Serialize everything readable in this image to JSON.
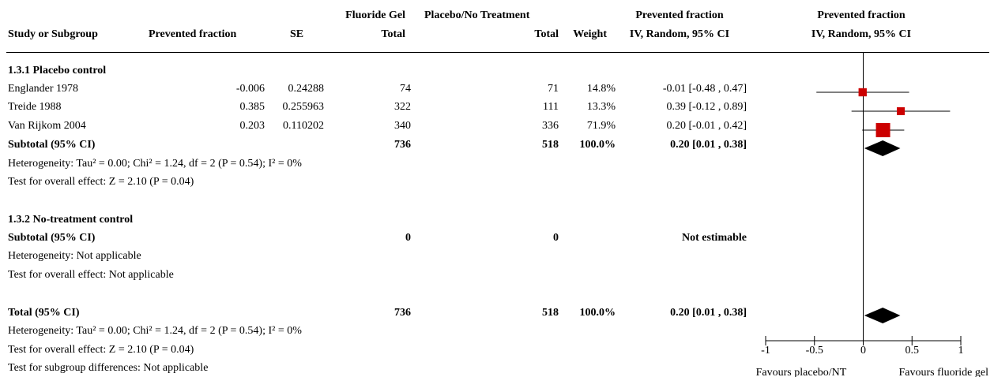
{
  "header": {
    "study": "Study or Subgroup",
    "pf": "Prevented fraction",
    "se": "SE",
    "exp_top": "Fluoride Gel",
    "exp_bottom": "Total",
    "ctl_top": "Placebo/No Treatment",
    "ctl_bottom": "Total",
    "weight": "Weight",
    "ci_top": "Prevented fraction",
    "ci_bottom": "IV, Random, 95% CI",
    "plot_top": "Prevented fraction",
    "plot_bottom": "IV, Random, 95% CI"
  },
  "groups": [
    {
      "title": "1.3.1 Placebo control",
      "studies": [
        {
          "name": "Englander 1978",
          "pf": "-0.006",
          "se": "0.24288",
          "exp_total": "74",
          "ctl_total": "71",
          "weight": "14.8%",
          "ci": "-0.01 [-0.48 , 0.47]"
        },
        {
          "name": "Treide 1988",
          "pf": "0.385",
          "se": "0.255963",
          "exp_total": "322",
          "ctl_total": "111",
          "weight": "13.3%",
          "ci": "0.39 [-0.12 , 0.89]"
        },
        {
          "name": "Van Rijkom 2004",
          "pf": "0.203",
          "se": "0.110202",
          "exp_total": "340",
          "ctl_total": "336",
          "weight": "71.9%",
          "ci": "0.20 [-0.01 , 0.42]"
        }
      ],
      "subtotal": {
        "label": "Subtotal (95% CI)",
        "exp_total": "736",
        "ctl_total": "518",
        "weight": "100.0%",
        "ci": "0.20 [0.01 , 0.38]"
      },
      "heterogeneity": "Heterogeneity: Tau² = 0.00; Chi² = 1.24, df = 2 (P = 0.54); I² = 0%",
      "overall": "Test for overall effect: Z = 2.10 (P = 0.04)"
    },
    {
      "title": "1.3.2 No-treatment control",
      "studies": [],
      "subtotal": {
        "label": "Subtotal (95% CI)",
        "exp_total": "0",
        "ctl_total": "0",
        "weight": "",
        "ci": "Not estimable"
      },
      "heterogeneity": "Heterogeneity: Not applicable",
      "overall": "Test for overall effect: Not applicable"
    }
  ],
  "total": {
    "label": "Total (95% CI)",
    "exp_total": "736",
    "ctl_total": "518",
    "weight": "100.0%",
    "ci": "0.20 [0.01 , 0.38]",
    "heterogeneity": "Heterogeneity: Tau² = 0.00; Chi² = 1.24, df = 2 (P = 0.54); I² = 0%",
    "overall": "Test for overall effect: Z = 2.10 (P = 0.04)",
    "subgroup_diff": "Test for subgroup differences: Not applicable"
  },
  "colors": {
    "study_marker": "#cc0000",
    "diamond": "#000000",
    "line": "#000000"
  },
  "chart_data": {
    "type": "forest",
    "xlim": [
      -1,
      1
    ],
    "ticks": [
      -1,
      -0.5,
      0,
      0.5,
      1
    ],
    "tick_labels": [
      "-1",
      "-0.5",
      "0",
      "0.5",
      "1"
    ],
    "left_label": "Favours placebo/NT",
    "right_label": "Favours fluoride gel",
    "studies": [
      {
        "name": "Englander 1978",
        "estimate": -0.006,
        "lower": -0.48,
        "upper": 0.47,
        "weight": 14.8
      },
      {
        "name": "Treide 1988",
        "estimate": 0.385,
        "lower": -0.12,
        "upper": 0.89,
        "weight": 13.3
      },
      {
        "name": "Van Rijkom 2004",
        "estimate": 0.203,
        "lower": -0.01,
        "upper": 0.42,
        "weight": 71.9
      }
    ],
    "pooled": [
      {
        "name": "Subtotal (95% CI)",
        "estimate": 0.2,
        "lower": 0.01,
        "upper": 0.38
      },
      {
        "name": "Total (95% CI)",
        "estimate": 0.2,
        "lower": 0.01,
        "upper": 0.38
      }
    ]
  }
}
